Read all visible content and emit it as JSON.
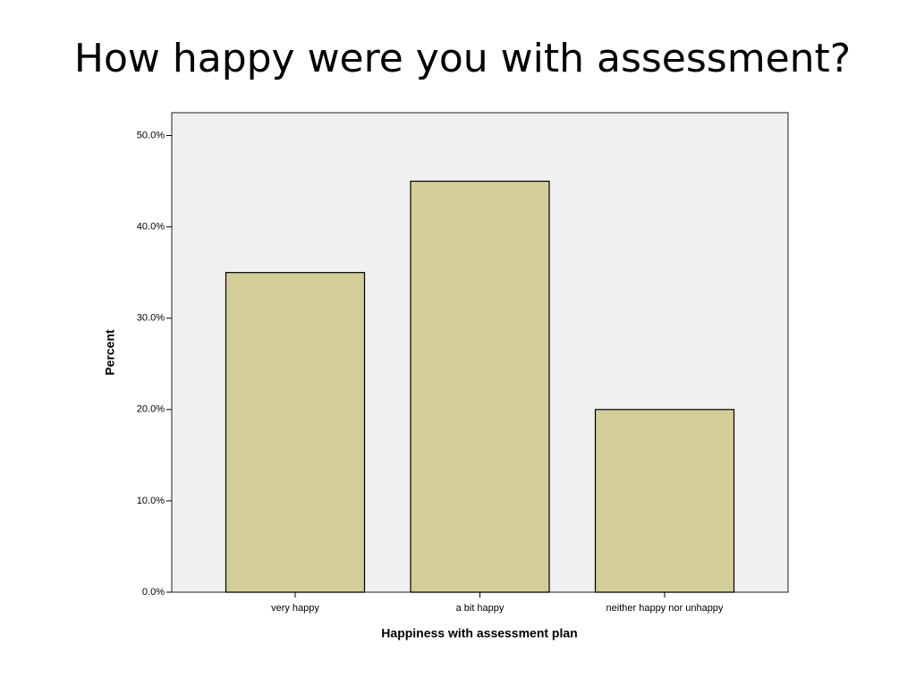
{
  "chart_data": {
    "type": "bar",
    "title": "How happy were you with assessment?",
    "x_label": "Happiness with assessment plan",
    "y_label": "Percent",
    "categories": [
      "very happy",
      "a bit happy",
      "neither happy nor unhappy"
    ],
    "values": [
      35,
      45,
      20
    ],
    "color": "#d3ce98",
    "ylim": [
      0,
      52.5
    ],
    "yticks": [
      {
        "value": 0,
        "label": "0.0%"
      },
      {
        "value": 10,
        "label": "10.0%"
      },
      {
        "value": 20,
        "label": "20.0%"
      },
      {
        "value": 30,
        "label": "30.0%"
      },
      {
        "value": 40,
        "label": "40.0%"
      },
      {
        "value": 50,
        "label": "50.0%"
      }
    ],
    "grid": false
  }
}
